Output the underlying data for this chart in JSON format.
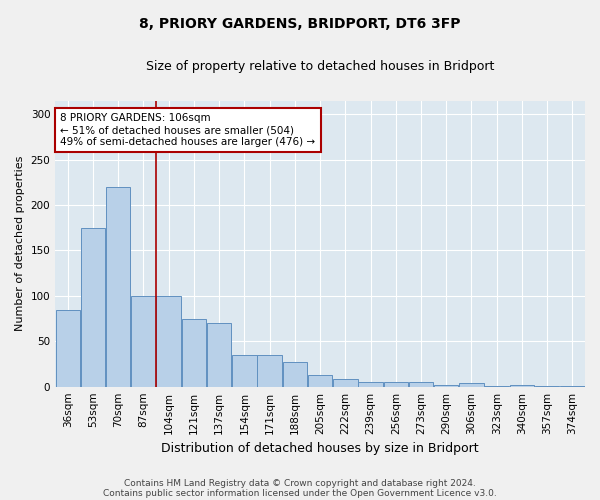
{
  "title1": "8, PRIORY GARDENS, BRIDPORT, DT6 3FP",
  "title2": "Size of property relative to detached houses in Bridport",
  "xlabel": "Distribution of detached houses by size in Bridport",
  "ylabel": "Number of detached properties",
  "categories": [
    "36sqm",
    "53sqm",
    "70sqm",
    "87sqm",
    "104sqm",
    "121sqm",
    "137sqm",
    "154sqm",
    "171sqm",
    "188sqm",
    "205sqm",
    "222sqm",
    "239sqm",
    "256sqm",
    "273sqm",
    "290sqm",
    "306sqm",
    "323sqm",
    "340sqm",
    "357sqm",
    "374sqm"
  ],
  "values": [
    84,
    175,
    220,
    100,
    100,
    75,
    70,
    35,
    35,
    27,
    13,
    8,
    5,
    5,
    5,
    2,
    4,
    1,
    2,
    1,
    1
  ],
  "bar_color": "#b8d0e8",
  "bar_edge_color": "#6090c0",
  "vline_x_index": 4,
  "vline_color": "#aa0000",
  "annotation_text": "8 PRIORY GARDENS: 106sqm\n← 51% of detached houses are smaller (504)\n49% of semi-detached houses are larger (476) →",
  "annotation_box_color": "#ffffff",
  "annotation_box_edge": "#aa0000",
  "ylim": [
    0,
    315
  ],
  "yticks": [
    0,
    50,
    100,
    150,
    200,
    250,
    300
  ],
  "footer1": "Contains HM Land Registry data © Crown copyright and database right 2024.",
  "footer2": "Contains public sector information licensed under the Open Government Licence v3.0.",
  "fig_bg": "#f0f0f0",
  "plot_bg": "#dde8f0",
  "grid_color": "#ffffff",
  "title1_fontsize": 10,
  "title2_fontsize": 9,
  "ylabel_fontsize": 8,
  "xlabel_fontsize": 9,
  "tick_fontsize": 7.5,
  "ann_fontsize": 7.5,
  "footer_fontsize": 6.5
}
